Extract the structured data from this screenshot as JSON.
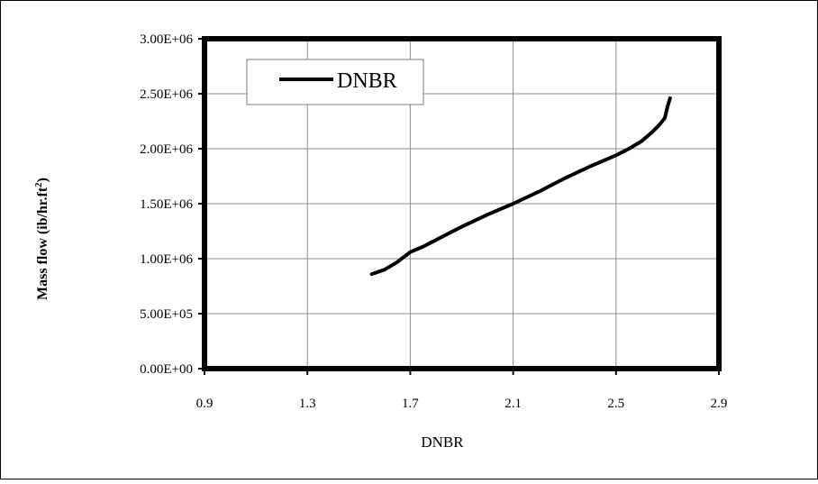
{
  "chart_data": {
    "type": "line",
    "title": "",
    "xlabel": "DNBR",
    "ylabel_main": "Mass flow (ib/hr.ft",
    "ylabel_sup": "2",
    "ylabel_close": ")",
    "xlim": [
      0.9,
      2.9
    ],
    "ylim": [
      0,
      3000000
    ],
    "x_ticks": [
      0.9,
      1.3,
      1.7,
      2.1,
      2.5,
      2.9
    ],
    "x_tick_labels": [
      "0.9",
      "1.3",
      "1.7",
      "2.1",
      "2.5",
      "2.9"
    ],
    "y_ticks": [
      0,
      500000,
      1000000,
      1500000,
      2000000,
      2500000,
      3000000
    ],
    "y_tick_labels": [
      "0.00E+00",
      "5.00E+05",
      "1.00E+06",
      "1.50E+06",
      "2.00E+06",
      "2.50E+06",
      "3.00E+06"
    ],
    "grid": true,
    "legend_position": "top-left",
    "series": [
      {
        "name": "DNBR",
        "color": "#000000",
        "x": [
          1.55,
          1.6,
          1.65,
          1.7,
          1.75,
          1.8,
          1.85,
          1.9,
          2.0,
          2.1,
          2.2,
          2.3,
          2.4,
          2.5,
          2.55,
          2.6,
          2.64,
          2.67,
          2.69,
          2.7,
          2.71
        ],
        "y": [
          860000,
          900000,
          970000,
          1060000,
          1110000,
          1170000,
          1230000,
          1290000,
          1400000,
          1500000,
          1610000,
          1730000,
          1840000,
          1940000,
          2000000,
          2070000,
          2150000,
          2220000,
          2280000,
          2380000,
          2460000
        ]
      }
    ]
  }
}
